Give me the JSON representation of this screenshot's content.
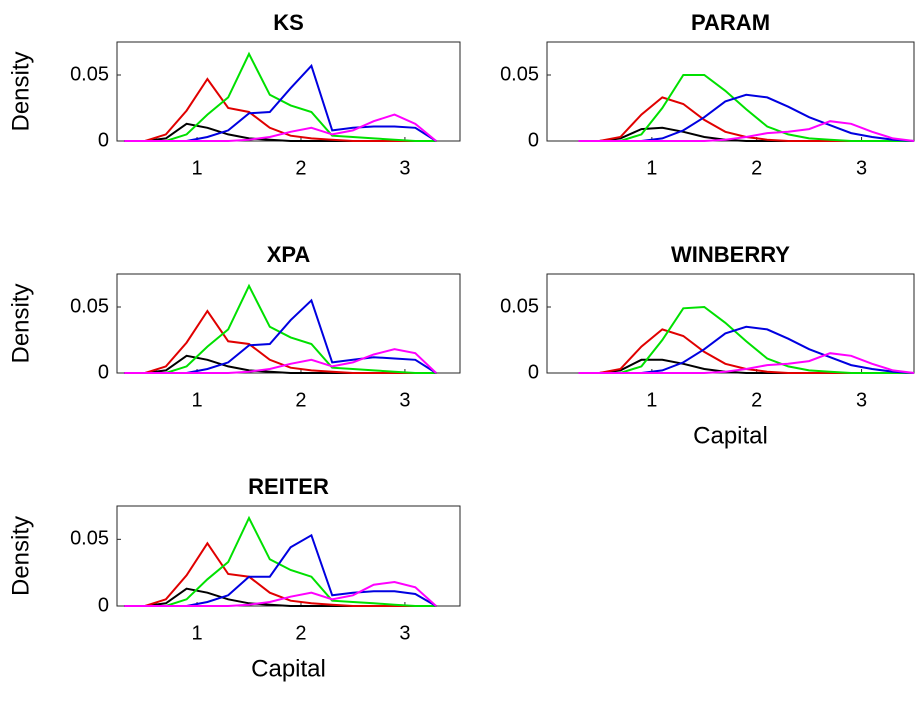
{
  "chart_data": [
    {
      "type": "line",
      "title": "KS",
      "ylabel": "Density",
      "x": [
        0.3,
        0.5,
        0.7,
        0.9,
        1.1,
        1.3,
        1.5,
        1.7,
        1.9,
        2.1,
        2.3,
        2.5,
        2.7,
        2.9,
        3.1,
        3.3
      ],
      "xlim": [
        0.23,
        3.53
      ],
      "xticks": [
        1,
        2,
        3
      ],
      "ylim": [
        0,
        0.075
      ],
      "yticks": [
        0,
        0.05
      ],
      "series": [
        {
          "color": "#000000",
          "values": [
            0,
            0,
            0.002,
            0.013,
            0.01,
            0.005,
            0.002,
            0.001,
            0,
            0,
            0,
            0,
            0,
            0,
            0,
            0
          ]
        },
        {
          "color": "#e00000",
          "values": [
            0,
            0,
            0.005,
            0.023,
            0.047,
            0.025,
            0.022,
            0.01,
            0.004,
            0.002,
            0.001,
            0,
            0,
            0,
            0,
            0
          ]
        },
        {
          "color": "#00e000",
          "values": [
            0,
            0,
            0,
            0.005,
            0.02,
            0.033,
            0.066,
            0.035,
            0.027,
            0.022,
            0.004,
            0.003,
            0.002,
            0.001,
            0,
            0
          ]
        },
        {
          "color": "#0000e0",
          "values": [
            0,
            0,
            0,
            0,
            0.003,
            0.008,
            0.021,
            0.022,
            0.04,
            0.057,
            0.008,
            0.01,
            0.011,
            0.011,
            0.01,
            0
          ]
        },
        {
          "color": "#ff00ff",
          "values": [
            0,
            0,
            0,
            0,
            0,
            0,
            0.001,
            0.003,
            0.007,
            0.01,
            0.005,
            0.008,
            0.015,
            0.02,
            0.013,
            0
          ]
        }
      ]
    },
    {
      "type": "line",
      "title": "PARAM",
      "x": [
        0.3,
        0.5,
        0.7,
        0.9,
        1.1,
        1.3,
        1.5,
        1.7,
        1.9,
        2.1,
        2.3,
        2.5,
        2.7,
        2.9,
        3.1,
        3.3,
        3.5
      ],
      "xlim": [
        0,
        3.5
      ],
      "xticks": [
        1,
        2,
        3
      ],
      "ylim": [
        0,
        0.075
      ],
      "yticks": [
        0,
        0.05
      ],
      "series": [
        {
          "color": "#000000",
          "values": [
            0,
            0,
            0.002,
            0.009,
            0.01,
            0.007,
            0.003,
            0.001,
            0,
            0,
            0,
            0,
            0,
            0,
            0,
            0,
            0
          ]
        },
        {
          "color": "#e00000",
          "values": [
            0,
            0,
            0.003,
            0.02,
            0.033,
            0.028,
            0.016,
            0.007,
            0.003,
            0.001,
            0,
            0,
            0,
            0,
            0,
            0,
            0
          ]
        },
        {
          "color": "#00e000",
          "values": [
            0,
            0,
            0,
            0.005,
            0.025,
            0.05,
            0.05,
            0.038,
            0.024,
            0.011,
            0.005,
            0.002,
            0.001,
            0,
            0,
            0,
            0
          ]
        },
        {
          "color": "#0000e0",
          "values": [
            0,
            0,
            0,
            0,
            0.002,
            0.008,
            0.018,
            0.03,
            0.035,
            0.033,
            0.026,
            0.018,
            0.012,
            0.006,
            0.003,
            0.001,
            0
          ]
        },
        {
          "color": "#ff00ff",
          "values": [
            0,
            0,
            0,
            0,
            0,
            0,
            0,
            0.001,
            0.003,
            0.006,
            0.007,
            0.009,
            0.015,
            0.013,
            0.007,
            0.002,
            0
          ]
        }
      ]
    },
    {
      "type": "line",
      "title": "XPA",
      "ylabel": "Density",
      "x": [
        0.3,
        0.5,
        0.7,
        0.9,
        1.1,
        1.3,
        1.5,
        1.7,
        1.9,
        2.1,
        2.3,
        2.5,
        2.7,
        2.9,
        3.1,
        3.3
      ],
      "xlim": [
        0.23,
        3.53
      ],
      "xticks": [
        1,
        2,
        3
      ],
      "ylim": [
        0,
        0.075
      ],
      "yticks": [
        0,
        0.05
      ],
      "series": [
        {
          "color": "#000000",
          "values": [
            0,
            0,
            0.002,
            0.013,
            0.01,
            0.005,
            0.002,
            0.001,
            0,
            0,
            0,
            0,
            0,
            0,
            0,
            0
          ]
        },
        {
          "color": "#e00000",
          "values": [
            0,
            0,
            0.005,
            0.023,
            0.047,
            0.024,
            0.022,
            0.01,
            0.004,
            0.002,
            0.001,
            0,
            0,
            0,
            0,
            0
          ]
        },
        {
          "color": "#00e000",
          "values": [
            0,
            0,
            0,
            0.005,
            0.02,
            0.033,
            0.066,
            0.035,
            0.027,
            0.022,
            0.004,
            0.003,
            0.002,
            0.001,
            0,
            0
          ]
        },
        {
          "color": "#0000e0",
          "values": [
            0,
            0,
            0,
            0,
            0.003,
            0.008,
            0.021,
            0.022,
            0.04,
            0.055,
            0.008,
            0.01,
            0.012,
            0.011,
            0.01,
            0
          ]
        },
        {
          "color": "#ff00ff",
          "values": [
            0,
            0,
            0,
            0,
            0,
            0,
            0.001,
            0.003,
            0.007,
            0.01,
            0.005,
            0.008,
            0.014,
            0.018,
            0.015,
            0
          ]
        }
      ]
    },
    {
      "type": "line",
      "title": "WINBERRY",
      "xlabel": "Capital",
      "x": [
        0.3,
        0.5,
        0.7,
        0.9,
        1.1,
        1.3,
        1.5,
        1.7,
        1.9,
        2.1,
        2.3,
        2.5,
        2.7,
        2.9,
        3.1,
        3.3,
        3.5
      ],
      "xlim": [
        0,
        3.5
      ],
      "xticks": [
        1,
        2,
        3
      ],
      "ylim": [
        0,
        0.075
      ],
      "yticks": [
        0,
        0.05
      ],
      "series": [
        {
          "color": "#000000",
          "values": [
            0,
            0,
            0.002,
            0.01,
            0.01,
            0.007,
            0.003,
            0.001,
            0,
            0,
            0,
            0,
            0,
            0,
            0,
            0,
            0
          ]
        },
        {
          "color": "#e00000",
          "values": [
            0,
            0,
            0.003,
            0.02,
            0.033,
            0.028,
            0.016,
            0.007,
            0.003,
            0.001,
            0,
            0,
            0,
            0,
            0,
            0,
            0
          ]
        },
        {
          "color": "#00e000",
          "values": [
            0,
            0,
            0,
            0.005,
            0.025,
            0.049,
            0.05,
            0.038,
            0.024,
            0.011,
            0.005,
            0.002,
            0.001,
            0,
            0,
            0,
            0
          ]
        },
        {
          "color": "#0000e0",
          "values": [
            0,
            0,
            0,
            0,
            0.002,
            0.008,
            0.018,
            0.03,
            0.035,
            0.033,
            0.026,
            0.018,
            0.012,
            0.006,
            0.003,
            0.001,
            0
          ]
        },
        {
          "color": "#ff00ff",
          "values": [
            0,
            0,
            0,
            0,
            0,
            0,
            0,
            0.001,
            0.003,
            0.006,
            0.007,
            0.009,
            0.015,
            0.013,
            0.007,
            0.002,
            0
          ]
        }
      ]
    },
    {
      "type": "line",
      "title": "REITER",
      "ylabel": "Density",
      "xlabel": "Capital",
      "x": [
        0.3,
        0.5,
        0.7,
        0.9,
        1.1,
        1.3,
        1.5,
        1.7,
        1.9,
        2.1,
        2.3,
        2.5,
        2.7,
        2.9,
        3.1,
        3.3
      ],
      "xlim": [
        0.23,
        3.53
      ],
      "xticks": [
        1,
        2,
        3
      ],
      "ylim": [
        0,
        0.075
      ],
      "yticks": [
        0,
        0.05
      ],
      "series": [
        {
          "color": "#000000",
          "values": [
            0,
            0,
            0.002,
            0.013,
            0.01,
            0.005,
            0.002,
            0.001,
            0,
            0,
            0,
            0,
            0,
            0,
            0,
            0
          ]
        },
        {
          "color": "#e00000",
          "values": [
            0,
            0,
            0.005,
            0.023,
            0.047,
            0.024,
            0.022,
            0.01,
            0.004,
            0.002,
            0.001,
            0,
            0,
            0,
            0,
            0
          ]
        },
        {
          "color": "#00e000",
          "values": [
            0,
            0,
            0,
            0.005,
            0.02,
            0.033,
            0.066,
            0.035,
            0.027,
            0.022,
            0.004,
            0.003,
            0.002,
            0.001,
            0,
            0
          ]
        },
        {
          "color": "#0000e0",
          "values": [
            0,
            0,
            0,
            0,
            0.003,
            0.008,
            0.022,
            0.022,
            0.044,
            0.053,
            0.008,
            0.01,
            0.011,
            0.011,
            0.009,
            0
          ]
        },
        {
          "color": "#ff00ff",
          "values": [
            0,
            0,
            0,
            0,
            0,
            0,
            0.001,
            0.003,
            0.007,
            0.01,
            0.005,
            0.008,
            0.016,
            0.018,
            0.014,
            0
          ]
        }
      ]
    }
  ]
}
